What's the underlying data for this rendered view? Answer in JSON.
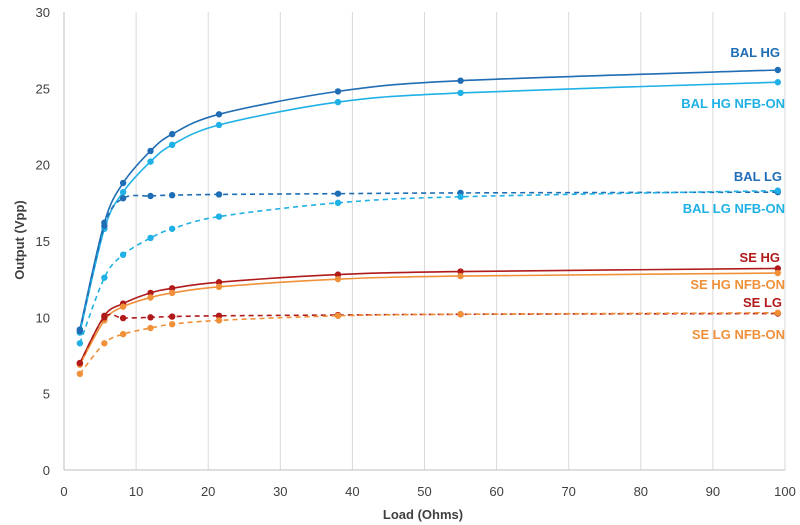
{
  "chart_data": {
    "type": "line",
    "title": "",
    "xlabel": "Load (Ohms)",
    "ylabel": "Output (Vpp)",
    "xlim": [
      0,
      100
    ],
    "ylim": [
      0,
      30
    ],
    "xticks": [
      0,
      10,
      20,
      30,
      40,
      50,
      60,
      70,
      80,
      90,
      100
    ],
    "yticks": [
      0,
      5,
      10,
      15,
      20,
      25,
      30
    ],
    "grid": "vertical",
    "legend": "inline-right",
    "series": [
      {
        "name": "BAL HG",
        "color": "#1f6db4",
        "dashed": false,
        "x": [
          2.2,
          5.6,
          8.2,
          12,
          15,
          21.5,
          38,
          55,
          99
        ],
        "y": [
          9.2,
          16.2,
          18.8,
          20.9,
          22.0,
          23.3,
          24.8,
          25.5,
          26.2
        ]
      },
      {
        "name": "BAL HG NFB-ON",
        "color": "#1fb0e6",
        "dashed": false,
        "x": [
          2.2,
          5.6,
          8.2,
          12,
          15,
          21.5,
          38,
          55,
          99
        ],
        "y": [
          9.0,
          15.8,
          18.2,
          20.2,
          21.3,
          22.6,
          24.1,
          24.7,
          25.4
        ]
      },
      {
        "name": "BAL LG",
        "color": "#1f6db4",
        "dashed": true,
        "x": [
          2.2,
          5.6,
          8.2,
          12,
          15,
          21.5,
          38,
          55,
          99
        ],
        "y": [
          9.1,
          16.0,
          17.8,
          17.95,
          18.0,
          18.05,
          18.1,
          18.15,
          18.2
        ]
      },
      {
        "name": "BAL LG NFB-ON",
        "color": "#1fb0e6",
        "dashed": true,
        "x": [
          2.2,
          5.6,
          8.2,
          12,
          15,
          21.5,
          38,
          55,
          99
        ],
        "y": [
          8.3,
          12.6,
          14.1,
          15.2,
          15.8,
          16.6,
          17.5,
          17.9,
          18.3
        ]
      },
      {
        "name": "SE HG",
        "color": "#b01a1a",
        "dashed": false,
        "x": [
          2.2,
          5.6,
          8.2,
          12,
          15,
          21.5,
          38,
          55,
          99
        ],
        "y": [
          7.0,
          10.1,
          10.9,
          11.6,
          11.9,
          12.3,
          12.8,
          13.0,
          13.2
        ]
      },
      {
        "name": "SE HG NFB-ON",
        "color": "#f0913a",
        "dashed": false,
        "x": [
          2.2,
          5.6,
          8.2,
          12,
          15,
          21.5,
          38,
          55,
          99
        ],
        "y": [
          6.9,
          9.8,
          10.7,
          11.3,
          11.6,
          12.0,
          12.5,
          12.7,
          12.9
        ]
      },
      {
        "name": "SE LG",
        "color": "#b01a1a",
        "dashed": true,
        "x": [
          2.2,
          5.6,
          8.2,
          12,
          15,
          21.5,
          38,
          55,
          99
        ],
        "y": [
          7.0,
          10.0,
          9.95,
          10.0,
          10.05,
          10.1,
          10.15,
          10.2,
          10.25
        ]
      },
      {
        "name": "SE LG NFB-ON",
        "color": "#f0913a",
        "dashed": true,
        "x": [
          2.2,
          5.6,
          8.2,
          12,
          15,
          21.5,
          38,
          55,
          99
        ],
        "y": [
          6.3,
          8.3,
          8.9,
          9.3,
          9.55,
          9.8,
          10.1,
          10.2,
          10.3
        ]
      }
    ]
  }
}
